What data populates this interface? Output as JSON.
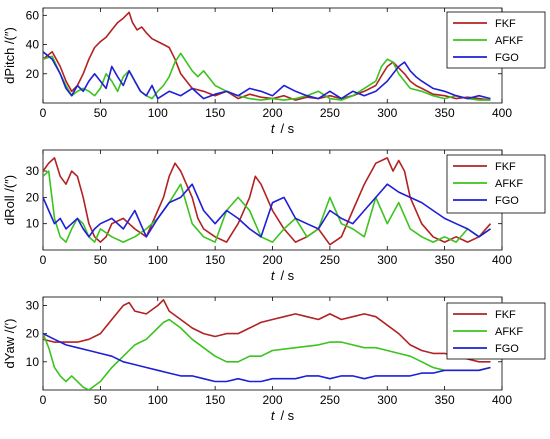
{
  "chart_data": [
    {
      "type": "line",
      "ylabel": "dPitch /(″)",
      "xlabel_var": "t",
      "xlabel_unit": "/ s",
      "xlim": [
        0,
        400
      ],
      "ylim": [
        0,
        65
      ],
      "xticks": [
        "0",
        "50",
        "100",
        "150",
        "200",
        "250",
        "300",
        "350",
        "400"
      ],
      "yticks": [
        "20",
        "40",
        "60"
      ],
      "ytick_values": [
        20,
        40,
        60
      ],
      "legend_position": "top-right",
      "series": [
        {
          "name": "FKF",
          "color": "#b22222",
          "x": [
            0,
            8,
            15,
            20,
            25,
            30,
            35,
            40,
            45,
            50,
            55,
            60,
            65,
            70,
            75,
            78,
            82,
            86,
            90,
            95,
            100,
            105,
            110,
            115,
            120,
            130,
            140,
            150,
            160,
            170,
            180,
            190,
            200,
            210,
            220,
            230,
            240,
            250,
            260,
            270,
            280,
            290,
            296,
            300,
            305,
            310,
            315,
            320,
            325,
            330,
            340,
            350,
            360,
            370,
            380,
            390
          ],
          "y": [
            30,
            35,
            25,
            15,
            8,
            12,
            20,
            30,
            38,
            42,
            45,
            50,
            55,
            58,
            62,
            55,
            50,
            52,
            48,
            44,
            42,
            40,
            38,
            30,
            20,
            10,
            8,
            5,
            8,
            3,
            6,
            4,
            3,
            5,
            2,
            4,
            3,
            5,
            3,
            5,
            8,
            12,
            20,
            25,
            28,
            24,
            20,
            15,
            12,
            10,
            6,
            5,
            3,
            4,
            3,
            2
          ]
        },
        {
          "name": "AFKF",
          "color": "#3cc31e",
          "x": [
            0,
            8,
            15,
            20,
            25,
            30,
            35,
            40,
            45,
            50,
            55,
            60,
            65,
            70,
            75,
            80,
            85,
            90,
            95,
            100,
            105,
            110,
            115,
            120,
            125,
            130,
            135,
            140,
            150,
            160,
            170,
            180,
            190,
            200,
            210,
            220,
            230,
            240,
            250,
            260,
            270,
            280,
            290,
            295,
            300,
            305,
            310,
            315,
            320,
            330,
            340,
            350,
            360,
            370,
            380,
            390
          ],
          "y": [
            30,
            32,
            20,
            12,
            5,
            8,
            10,
            8,
            5,
            10,
            20,
            15,
            8,
            18,
            22,
            15,
            8,
            5,
            3,
            8,
            12,
            18,
            28,
            34,
            28,
            22,
            18,
            22,
            12,
            8,
            5,
            3,
            2,
            3,
            2,
            3,
            5,
            8,
            3,
            2,
            5,
            10,
            15,
            25,
            30,
            28,
            20,
            15,
            10,
            8,
            5,
            3,
            5,
            3,
            2,
            2
          ]
        },
        {
          "name": "FGO",
          "color": "#1f1fd6",
          "x": [
            0,
            8,
            15,
            20,
            25,
            30,
            35,
            40,
            45,
            50,
            55,
            60,
            65,
            70,
            75,
            80,
            85,
            90,
            95,
            100,
            110,
            120,
            130,
            140,
            150,
            160,
            170,
            180,
            190,
            200,
            210,
            220,
            230,
            240,
            250,
            260,
            270,
            280,
            290,
            300,
            305,
            310,
            315,
            320,
            325,
            330,
            340,
            350,
            360,
            370,
            380,
            390
          ],
          "y": [
            35,
            30,
            20,
            10,
            5,
            12,
            8,
            15,
            20,
            15,
            10,
            25,
            18,
            12,
            22,
            15,
            8,
            5,
            12,
            3,
            8,
            5,
            10,
            3,
            6,
            8,
            5,
            10,
            8,
            5,
            12,
            8,
            5,
            3,
            8,
            3,
            8,
            5,
            8,
            15,
            20,
            25,
            28,
            22,
            18,
            15,
            10,
            8,
            5,
            3,
            5,
            3
          ]
        }
      ]
    },
    {
      "type": "line",
      "ylabel": "dRoll /(″)",
      "xlabel_var": "t",
      "xlabel_unit": "/ s",
      "xlim": [
        0,
        400
      ],
      "ylim": [
        0,
        38
      ],
      "xticks": [
        "0",
        "50",
        "100",
        "150",
        "200",
        "250",
        "300",
        "350",
        "400"
      ],
      "yticks": [
        "10",
        "20",
        "30"
      ],
      "ytick_values": [
        10,
        20,
        30
      ],
      "legend_position": "top-right",
      "series": [
        {
          "name": "FKF",
          "color": "#b22222",
          "x": [
            0,
            5,
            10,
            15,
            20,
            25,
            30,
            35,
            40,
            45,
            50,
            55,
            60,
            70,
            80,
            90,
            100,
            105,
            110,
            115,
            120,
            125,
            130,
            135,
            140,
            150,
            160,
            170,
            180,
            185,
            190,
            195,
            200,
            210,
            220,
            230,
            240,
            250,
            260,
            270,
            280,
            290,
            300,
            305,
            310,
            315,
            320,
            330,
            340,
            350,
            360,
            370,
            380,
            390
          ],
          "y": [
            30,
            33,
            35,
            28,
            25,
            30,
            28,
            20,
            10,
            5,
            3,
            5,
            10,
            12,
            8,
            5,
            15,
            20,
            28,
            33,
            30,
            25,
            20,
            12,
            8,
            5,
            3,
            10,
            20,
            28,
            25,
            20,
            15,
            8,
            3,
            5,
            8,
            2,
            5,
            15,
            25,
            33,
            35,
            30,
            34,
            30,
            20,
            10,
            5,
            3,
            5,
            3,
            5,
            10
          ]
        },
        {
          "name": "AFKF",
          "color": "#3cc31e",
          "x": [
            0,
            5,
            10,
            15,
            20,
            25,
            30,
            35,
            40,
            45,
            50,
            60,
            70,
            80,
            90,
            100,
            110,
            120,
            130,
            140,
            150,
            160,
            170,
            180,
            190,
            200,
            210,
            220,
            230,
            240,
            250,
            260,
            270,
            280,
            290,
            300,
            310,
            320,
            330,
            340,
            350,
            360,
            370,
            380,
            390
          ],
          "y": [
            28,
            30,
            12,
            5,
            3,
            8,
            12,
            10,
            5,
            3,
            8,
            5,
            3,
            5,
            8,
            12,
            18,
            25,
            10,
            5,
            3,
            15,
            20,
            15,
            5,
            3,
            8,
            12,
            5,
            8,
            20,
            10,
            8,
            5,
            20,
            10,
            18,
            8,
            5,
            3,
            5,
            3,
            8,
            5,
            8
          ]
        },
        {
          "name": "FGO",
          "color": "#1f1fd6",
          "x": [
            0,
            5,
            10,
            15,
            20,
            25,
            30,
            35,
            40,
            45,
            50,
            60,
            70,
            80,
            90,
            100,
            110,
            120,
            130,
            140,
            150,
            160,
            170,
            180,
            190,
            200,
            210,
            220,
            230,
            240,
            250,
            260,
            270,
            280,
            290,
            300,
            310,
            320,
            330,
            340,
            350,
            360,
            370,
            380,
            390
          ],
          "y": [
            20,
            15,
            10,
            12,
            8,
            10,
            12,
            8,
            5,
            8,
            10,
            12,
            8,
            15,
            5,
            12,
            18,
            20,
            25,
            15,
            10,
            15,
            12,
            8,
            5,
            18,
            20,
            12,
            10,
            8,
            15,
            12,
            10,
            15,
            20,
            25,
            22,
            20,
            18,
            15,
            12,
            10,
            8,
            5,
            8
          ]
        }
      ]
    },
    {
      "type": "line",
      "ylabel": "dYaw /(′)",
      "xlabel_var": "t",
      "xlabel_unit": "/ s",
      "xlim": [
        0,
        400
      ],
      "ylim": [
        0,
        33
      ],
      "xticks": [
        "0",
        "50",
        "100",
        "150",
        "200",
        "250",
        "300",
        "350",
        "400"
      ],
      "yticks": [
        "10",
        "20",
        "30"
      ],
      "ytick_values": [
        10,
        20,
        30
      ],
      "legend_position": "top-right",
      "series": [
        {
          "name": "FKF",
          "color": "#b22222",
          "x": [
            0,
            10,
            20,
            30,
            40,
            50,
            60,
            70,
            75,
            80,
            90,
            100,
            105,
            110,
            120,
            130,
            140,
            150,
            160,
            170,
            180,
            190,
            200,
            210,
            220,
            230,
            240,
            250,
            260,
            270,
            280,
            290,
            300,
            310,
            320,
            330,
            340,
            350,
            360,
            370,
            380,
            390
          ],
          "y": [
            18,
            17,
            17,
            17,
            18,
            20,
            25,
            30,
            31,
            28,
            27,
            30,
            32,
            28,
            25,
            22,
            20,
            19,
            20,
            20,
            22,
            24,
            25,
            26,
            27,
            26,
            25,
            27,
            25,
            26,
            27,
            26,
            23,
            20,
            16,
            14,
            13,
            13,
            12,
            11,
            10,
            10
          ]
        },
        {
          "name": "AFKF",
          "color": "#3cc31e",
          "x": [
            0,
            5,
            10,
            15,
            20,
            25,
            30,
            35,
            40,
            50,
            60,
            70,
            80,
            90,
            100,
            105,
            110,
            120,
            130,
            140,
            150,
            160,
            170,
            180,
            190,
            200,
            220,
            240,
            250,
            260,
            270,
            280,
            290,
            300,
            310,
            320,
            330,
            340,
            350,
            360,
            370,
            380,
            390
          ],
          "y": [
            20,
            15,
            8,
            5,
            3,
            5,
            3,
            1,
            0,
            3,
            8,
            12,
            16,
            18,
            22,
            24,
            25,
            22,
            18,
            15,
            12,
            10,
            10,
            12,
            12,
            14,
            15,
            16,
            17,
            17,
            16,
            15,
            15,
            14,
            13,
            12,
            10,
            8,
            7,
            7,
            7,
            7,
            8
          ]
        },
        {
          "name": "FGO",
          "color": "#1f1fd6",
          "x": [
            0,
            10,
            20,
            30,
            40,
            50,
            60,
            70,
            80,
            90,
            100,
            110,
            120,
            130,
            140,
            150,
            160,
            170,
            180,
            190,
            200,
            210,
            220,
            230,
            240,
            250,
            260,
            270,
            280,
            290,
            300,
            310,
            320,
            330,
            340,
            350,
            360,
            370,
            380,
            390
          ],
          "y": [
            20,
            18,
            16,
            15,
            14,
            13,
            12,
            10,
            9,
            8,
            7,
            6,
            5,
            5,
            4,
            3,
            3,
            4,
            3,
            3,
            4,
            4,
            4,
            5,
            5,
            4,
            5,
            5,
            4,
            5,
            5,
            5,
            5,
            6,
            6,
            7,
            7,
            7,
            7,
            8
          ]
        }
      ]
    }
  ]
}
